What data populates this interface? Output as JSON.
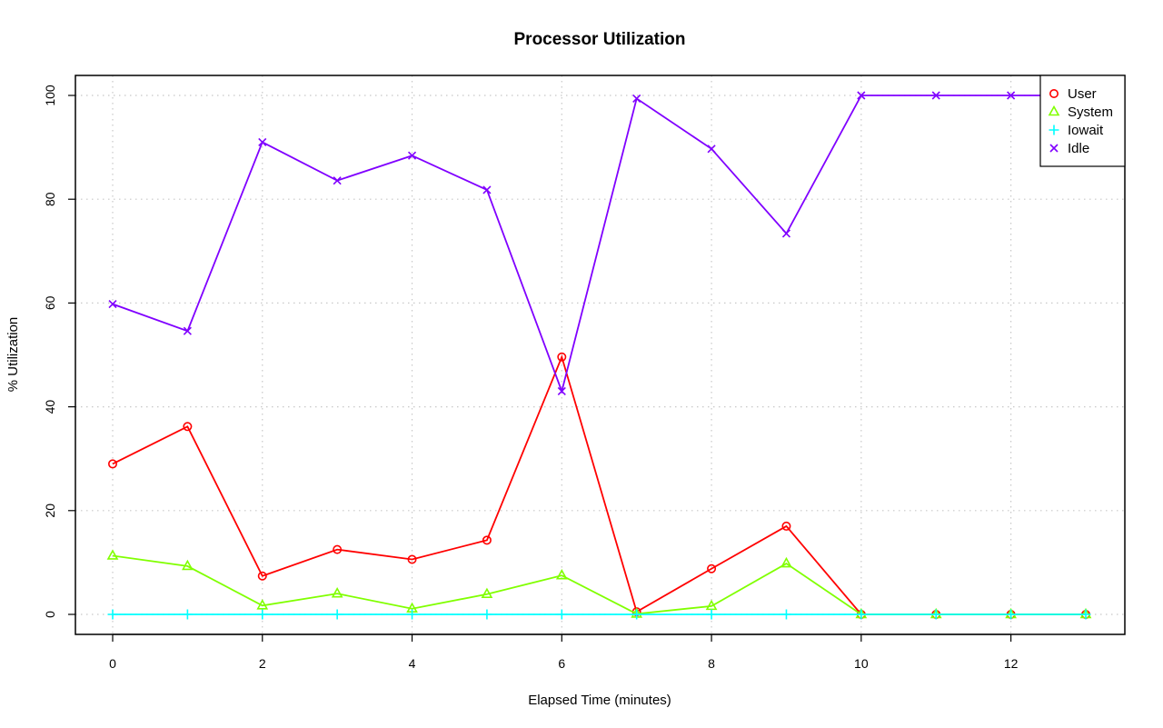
{
  "chart_data": {
    "type": "line",
    "title": "Processor Utilization",
    "xlabel": "Elapsed Time (minutes)",
    "ylabel": "% Utilization",
    "xlim": [
      0,
      13
    ],
    "ylim": [
      0,
      100
    ],
    "xticks": [
      0,
      2,
      4,
      6,
      8,
      10,
      12
    ],
    "yticks": [
      0,
      20,
      40,
      60,
      80,
      100
    ],
    "grid": true,
    "legend_position": "top-right",
    "x": [
      0,
      1,
      2,
      3,
      4,
      5,
      6,
      7,
      8,
      9,
      10,
      11,
      12,
      13
    ],
    "series": [
      {
        "name": "User",
        "color": "#ff0000",
        "marker": "circle",
        "values": [
          29,
          36.2,
          7.4,
          12.5,
          10.6,
          14.3,
          49.6,
          0.5,
          8.8,
          17,
          0,
          0,
          0,
          0
        ]
      },
      {
        "name": "System",
        "color": "#80ff00",
        "marker": "triangle",
        "values": [
          11.3,
          9.3,
          1.7,
          4,
          1.1,
          3.9,
          7.5,
          0.1,
          1.6,
          9.8,
          0,
          0,
          0,
          0
        ]
      },
      {
        "name": "Iowait",
        "color": "#00ffff",
        "marker": "plus",
        "values": [
          0,
          0,
          0,
          0,
          0,
          0,
          0,
          0,
          0,
          0,
          0,
          0,
          0,
          0
        ]
      },
      {
        "name": "Idle",
        "color": "#8000ff",
        "marker": "cross",
        "values": [
          59.8,
          54.6,
          91,
          83.6,
          88.4,
          81.8,
          43,
          99.4,
          89.7,
          73.4,
          100,
          100,
          100,
          100
        ]
      }
    ]
  }
}
